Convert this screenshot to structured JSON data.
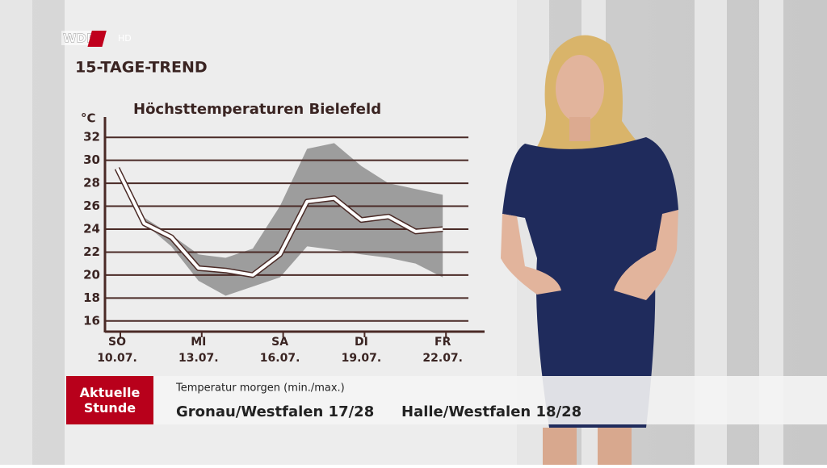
{
  "channel": {
    "logo": "WDR",
    "badge": "HD"
  },
  "segment_title": "15-TAGE-TREND",
  "chart_data": {
    "type": "line",
    "title": "Höchsttemperaturen Bielefeld",
    "y_label": "°C",
    "categories": [
      "10.07.",
      null,
      null,
      "13.07.",
      null,
      null,
      "16.07.",
      null,
      null,
      "19.07.",
      null,
      null,
      "22.07."
    ],
    "category_weekdays": [
      "SO",
      null,
      null,
      "MI",
      null,
      null,
      "SA",
      null,
      null,
      "DI",
      null,
      null,
      "FR"
    ],
    "values": [
      29.3,
      24.5,
      23.3,
      20.6,
      20.4,
      20.0,
      21.8,
      26.4,
      26.7,
      24.8,
      25.1,
      23.8,
      24.0
    ],
    "band": {
      "upper": [
        29.0,
        25.0,
        23.5,
        21.8,
        21.5,
        22.3,
        26.0,
        31.0,
        31.5,
        29.5,
        28.0,
        27.5,
        27.0
      ],
      "lower": [
        29.0,
        24.5,
        22.5,
        19.5,
        18.2,
        19.0,
        19.8,
        22.5,
        22.2,
        21.8,
        21.5,
        21.0,
        19.8
      ],
      "color": "#8e8e8e"
    },
    "color": "#ffffff",
    "ylim": [
      15,
      33
    ],
    "yticks": [
      16,
      18,
      20,
      22,
      24,
      26,
      28,
      30,
      32
    ],
    "grid": true
  },
  "ticker": {
    "show": "Aktuelle Stunde",
    "heading": "Temperatur morgen (min./max.)",
    "items": [
      "Gronau/Westfalen 17/28",
      "Halle/Westfalen 18/28"
    ]
  }
}
